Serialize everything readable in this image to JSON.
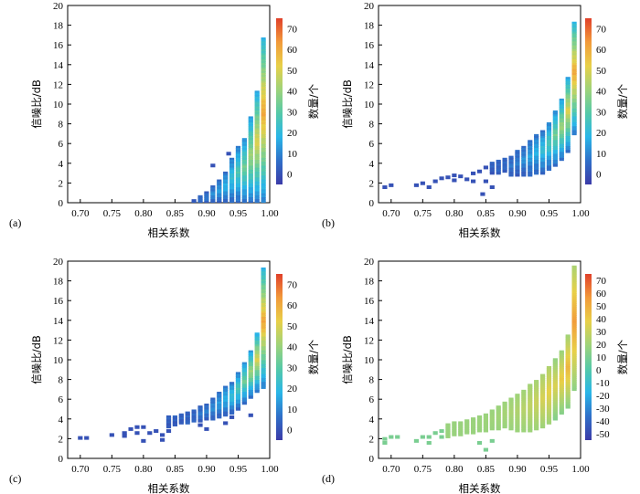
{
  "chart_data": [
    {
      "type": "heatmap",
      "panel_label": "(a)",
      "xlabel": "相关系数",
      "ylabel": "信噪比/dB",
      "colorbar_label": "数量/个",
      "xlim": [
        0.68,
        1.0
      ],
      "ylim": [
        0,
        20
      ],
      "xticks": [
        "0.70",
        "0.75",
        "0.80",
        "0.85",
        "0.90",
        "0.95",
        "1.00"
      ],
      "yticks": [
        "0",
        "2",
        "4",
        "6",
        "8",
        "10",
        "12",
        "14",
        "16",
        "18",
        "20"
      ],
      "colorbar_range": [
        -5,
        75
      ],
      "colorbar_ticks": [
        "0",
        "10",
        "20",
        "30",
        "40",
        "50",
        "60",
        "70"
      ],
      "colormap": [
        "#3b3ba8",
        "#2f6fc8",
        "#29b6e8",
        "#55c9a8",
        "#9ed37a",
        "#e8d048",
        "#f29a3a",
        "#e0402a"
      ],
      "columns": [
        {
          "x": 0.88,
          "ymin": 0.0,
          "ymax": 0.2
        },
        {
          "x": 0.89,
          "ymin": 0.0,
          "ymax": 0.6
        },
        {
          "x": 0.9,
          "ymin": 0.0,
          "ymax": 1.0
        },
        {
          "x": 0.91,
          "ymin": 0.0,
          "ymax": 1.6
        },
        {
          "x": 0.92,
          "ymin": 0.0,
          "ymax": 2.2
        },
        {
          "x": 0.93,
          "ymin": 0.0,
          "ymax": 3.0
        },
        {
          "x": 0.94,
          "ymin": 0.0,
          "ymax": 4.4
        },
        {
          "x": 0.95,
          "ymin": 0.0,
          "ymax": 5.6
        },
        {
          "x": 0.96,
          "ymin": 0.0,
          "ymax": 6.4
        },
        {
          "x": 0.97,
          "ymin": 0.0,
          "ymax": 8.6
        },
        {
          "x": 0.98,
          "ymin": 0.0,
          "ymax": 11.2
        },
        {
          "x": 0.99,
          "ymin": 0.0,
          "ymax": 16.6
        }
      ],
      "scatter": [
        {
          "x": 0.91,
          "y": 3.8
        },
        {
          "x": 0.935,
          "y": 5.0
        }
      ]
    },
    {
      "type": "heatmap",
      "panel_label": "(b)",
      "xlabel": "相关系数",
      "ylabel": "信噪比/dB",
      "colorbar_label": "数量/个",
      "xlim": [
        0.68,
        1.0
      ],
      "ylim": [
        0,
        20
      ],
      "xticks": [
        "0.70",
        "0.75",
        "0.80",
        "0.85",
        "0.90",
        "0.95",
        "1.00"
      ],
      "yticks": [
        "0",
        "2",
        "4",
        "6",
        "8",
        "10",
        "12",
        "14",
        "16",
        "18",
        "20"
      ],
      "colorbar_range": [
        -5,
        75
      ],
      "colorbar_ticks": [
        "0",
        "10",
        "20",
        "30",
        "40",
        "50",
        "60",
        "70"
      ],
      "colormap": [
        "#3b3ba8",
        "#2f6fc8",
        "#29b6e8",
        "#55c9a8",
        "#9ed37a",
        "#e8d048",
        "#f29a3a",
        "#e0402a"
      ],
      "columns": [
        {
          "x": 0.86,
          "ymin": 3.0,
          "ymax": 4.0
        },
        {
          "x": 0.87,
          "ymin": 3.0,
          "ymax": 4.2
        },
        {
          "x": 0.88,
          "ymin": 3.2,
          "ymax": 4.4
        },
        {
          "x": 0.89,
          "ymin": 2.8,
          "ymax": 4.6
        },
        {
          "x": 0.9,
          "ymin": 2.8,
          "ymax": 5.2
        },
        {
          "x": 0.91,
          "ymin": 2.8,
          "ymax": 5.6
        },
        {
          "x": 0.92,
          "ymin": 2.8,
          "ymax": 6.2
        },
        {
          "x": 0.93,
          "ymin": 3.0,
          "ymax": 6.8
        },
        {
          "x": 0.94,
          "ymin": 3.0,
          "ymax": 7.2
        },
        {
          "x": 0.95,
          "ymin": 3.4,
          "ymax": 8.0
        },
        {
          "x": 0.96,
          "ymin": 3.8,
          "ymax": 9.2
        },
        {
          "x": 0.97,
          "ymin": 4.4,
          "ymax": 10.4
        },
        {
          "x": 0.98,
          "ymin": 5.2,
          "ymax": 12.6
        },
        {
          "x": 0.99,
          "ymin": 7.0,
          "ymax": 18.2
        }
      ],
      "scatter": [
        {
          "x": 0.69,
          "y": 1.6
        },
        {
          "x": 0.7,
          "y": 1.8
        },
        {
          "x": 0.74,
          "y": 1.8
        },
        {
          "x": 0.75,
          "y": 2.0
        },
        {
          "x": 0.76,
          "y": 1.6
        },
        {
          "x": 0.77,
          "y": 2.2
        },
        {
          "x": 0.78,
          "y": 2.5
        },
        {
          "x": 0.79,
          "y": 2.6
        },
        {
          "x": 0.8,
          "y": 2.8
        },
        {
          "x": 0.81,
          "y": 2.7
        },
        {
          "x": 0.82,
          "y": 2.4
        },
        {
          "x": 0.83,
          "y": 3.0
        },
        {
          "x": 0.84,
          "y": 3.2
        },
        {
          "x": 0.85,
          "y": 3.6
        },
        {
          "x": 0.85,
          "y": 2.2
        },
        {
          "x": 0.845,
          "y": 0.9
        },
        {
          "x": 0.83,
          "y": 2.2
        },
        {
          "x": 0.86,
          "y": 1.6
        },
        {
          "x": 0.8,
          "y": 2.3
        }
      ]
    },
    {
      "type": "heatmap",
      "panel_label": "(c)",
      "xlabel": "相关系数",
      "ylabel": "信噪比/dB",
      "colorbar_label": "数量/个",
      "xlim": [
        0.68,
        1.0
      ],
      "ylim": [
        0,
        20
      ],
      "xticks": [
        "0.70",
        "0.75",
        "0.80",
        "0.85",
        "0.90",
        "0.95",
        "1.00"
      ],
      "yticks": [
        "0",
        "2",
        "4",
        "6",
        "8",
        "10",
        "12",
        "14",
        "16",
        "18",
        "20"
      ],
      "colorbar_range": [
        -5,
        75
      ],
      "colorbar_ticks": [
        "0",
        "10",
        "20",
        "30",
        "40",
        "50",
        "60",
        "70"
      ],
      "colormap": [
        "#3b3ba8",
        "#2f6fc8",
        "#29b6e8",
        "#55c9a8",
        "#9ed37a",
        "#e8d048",
        "#f29a3a",
        "#e0402a"
      ],
      "columns": [
        {
          "x": 0.84,
          "ymin": 3.2,
          "ymax": 4.2
        },
        {
          "x": 0.85,
          "ymin": 3.4,
          "ymax": 4.2
        },
        {
          "x": 0.86,
          "ymin": 3.6,
          "ymax": 4.4
        },
        {
          "x": 0.87,
          "ymin": 3.6,
          "ymax": 4.6
        },
        {
          "x": 0.88,
          "ymin": 3.8,
          "ymax": 4.8
        },
        {
          "x": 0.89,
          "ymin": 3.8,
          "ymax": 5.2
        },
        {
          "x": 0.9,
          "ymin": 4.0,
          "ymax": 5.4
        },
        {
          "x": 0.91,
          "ymin": 4.0,
          "ymax": 6.0
        },
        {
          "x": 0.92,
          "ymin": 4.2,
          "ymax": 6.6
        },
        {
          "x": 0.93,
          "ymin": 4.4,
          "ymax": 7.2
        },
        {
          "x": 0.94,
          "ymin": 4.6,
          "ymax": 7.6
        },
        {
          "x": 0.95,
          "ymin": 5.0,
          "ymax": 8.6
        },
        {
          "x": 0.96,
          "ymin": 5.6,
          "ymax": 9.6
        },
        {
          "x": 0.97,
          "ymin": 6.2,
          "ymax": 10.8
        },
        {
          "x": 0.98,
          "ymin": 6.8,
          "ymax": 12.6
        },
        {
          "x": 0.99,
          "ymin": 7.2,
          "ymax": 19.2
        }
      ],
      "scatter": [
        {
          "x": 0.7,
          "y": 2.1
        },
        {
          "x": 0.71,
          "y": 2.1
        },
        {
          "x": 0.75,
          "y": 2.4
        },
        {
          "x": 0.77,
          "y": 2.3
        },
        {
          "x": 0.77,
          "y": 2.6
        },
        {
          "x": 0.78,
          "y": 3.0
        },
        {
          "x": 0.79,
          "y": 3.2
        },
        {
          "x": 0.79,
          "y": 2.6
        },
        {
          "x": 0.8,
          "y": 3.2
        },
        {
          "x": 0.8,
          "y": 1.8
        },
        {
          "x": 0.81,
          "y": 2.6
        },
        {
          "x": 0.82,
          "y": 2.8
        },
        {
          "x": 0.83,
          "y": 1.9
        },
        {
          "x": 0.83,
          "y": 2.4
        },
        {
          "x": 0.84,
          "y": 2.8
        },
        {
          "x": 0.89,
          "y": 3.4
        },
        {
          "x": 0.9,
          "y": 3.0
        },
        {
          "x": 0.93,
          "y": 3.6
        },
        {
          "x": 0.94,
          "y": 4.2
        },
        {
          "x": 0.97,
          "y": 4.4
        }
      ]
    },
    {
      "type": "heatmap",
      "panel_label": "(d)",
      "xlabel": "相关系数",
      "ylabel": "信噪比/dB",
      "colorbar_label": "数量/个",
      "xlim": [
        0.68,
        1.0
      ],
      "ylim": [
        0,
        20
      ],
      "xticks": [
        "0.70",
        "0.75",
        "0.80",
        "0.85",
        "0.90",
        "0.95",
        "1.00"
      ],
      "yticks": [
        "0",
        "2",
        "4",
        "6",
        "8",
        "10",
        "12",
        "14",
        "16",
        "18",
        "20"
      ],
      "colorbar_range": [
        -55,
        75
      ],
      "colorbar_ticks": [
        "-50",
        "-40",
        "-30",
        "-20",
        "-10",
        "0",
        "10",
        "20",
        "30",
        "40",
        "50",
        "60",
        "70"
      ],
      "colormap": [
        "#3b3ba8",
        "#2f6fc8",
        "#29b6e8",
        "#55c9a8",
        "#9ed37a",
        "#e8d048",
        "#f29a3a",
        "#e0402a"
      ],
      "columns": [
        {
          "x": 0.79,
          "ymin": 2.2,
          "ymax": 3.4
        },
        {
          "x": 0.8,
          "ymin": 2.4,
          "ymax": 3.6
        },
        {
          "x": 0.81,
          "ymin": 2.4,
          "ymax": 3.6
        },
        {
          "x": 0.82,
          "ymin": 2.6,
          "ymax": 3.8
        },
        {
          "x": 0.83,
          "ymin": 2.6,
          "ymax": 4.0
        },
        {
          "x": 0.84,
          "ymin": 2.8,
          "ymax": 4.2
        },
        {
          "x": 0.85,
          "ymin": 2.8,
          "ymax": 4.4
        },
        {
          "x": 0.86,
          "ymin": 3.0,
          "ymax": 4.8
        },
        {
          "x": 0.87,
          "ymin": 3.0,
          "ymax": 5.2
        },
        {
          "x": 0.88,
          "ymin": 3.2,
          "ymax": 5.6
        },
        {
          "x": 0.89,
          "ymin": 3.0,
          "ymax": 6.0
        },
        {
          "x": 0.9,
          "ymin": 2.8,
          "ymax": 6.4
        },
        {
          "x": 0.91,
          "ymin": 2.8,
          "ymax": 6.8
        },
        {
          "x": 0.92,
          "ymin": 2.8,
          "ymax": 7.4
        },
        {
          "x": 0.93,
          "ymin": 3.0,
          "ymax": 7.8
        },
        {
          "x": 0.94,
          "ymin": 3.2,
          "ymax": 8.4
        },
        {
          "x": 0.95,
          "ymin": 3.6,
          "ymax": 9.2
        },
        {
          "x": 0.96,
          "ymin": 4.0,
          "ymax": 10.0
        },
        {
          "x": 0.97,
          "ymin": 4.6,
          "ymax": 10.8
        },
        {
          "x": 0.98,
          "ymin": 5.2,
          "ymax": 12.4
        },
        {
          "x": 0.99,
          "ymin": 7.0,
          "ymax": 19.4
        }
      ],
      "scatter": [
        {
          "x": 0.69,
          "y": 1.6
        },
        {
          "x": 0.69,
          "y": 2.0
        },
        {
          "x": 0.7,
          "y": 2.2
        },
        {
          "x": 0.71,
          "y": 2.2
        },
        {
          "x": 0.74,
          "y": 1.8
        },
        {
          "x": 0.75,
          "y": 2.2
        },
        {
          "x": 0.76,
          "y": 1.6
        },
        {
          "x": 0.76,
          "y": 2.2
        },
        {
          "x": 0.77,
          "y": 2.6
        },
        {
          "x": 0.78,
          "y": 2.8
        },
        {
          "x": 0.78,
          "y": 2.2
        },
        {
          "x": 0.85,
          "y": 0.9
        },
        {
          "x": 0.86,
          "y": 1.8
        },
        {
          "x": 0.84,
          "y": 1.6
        }
      ]
    }
  ]
}
